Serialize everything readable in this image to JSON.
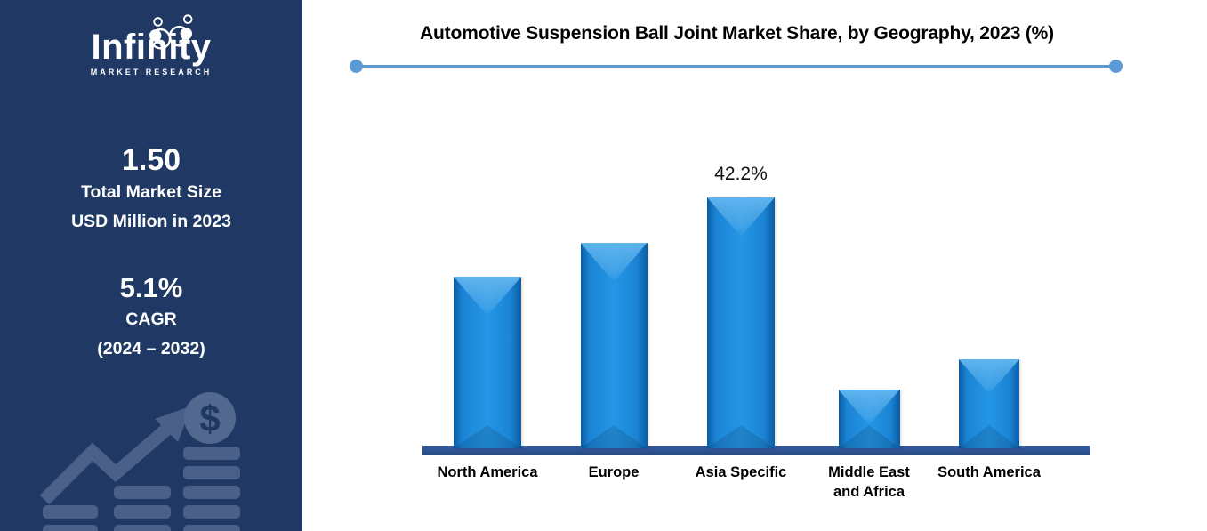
{
  "sidebar": {
    "logo": {
      "title": "Infinity",
      "subtitle": "MARKET RESEARCH"
    },
    "market_size": {
      "value": "1.50",
      "line1": "Total Market Size",
      "line2": "USD Million in 2023"
    },
    "cagr": {
      "value": "5.1%",
      "label": "CAGR",
      "period": "(2024 – 2032)"
    },
    "icons": {
      "dollar_coin": "$"
    },
    "colors": {
      "background": "#1F3864",
      "text": "#FFFFFF",
      "graphic": "#4A6088"
    }
  },
  "chart_data": {
    "type": "bar",
    "title": "Automotive Suspension Ball Joint Market Share, by Geography, 2023 (%)",
    "categories": [
      "North America",
      "Europe",
      "Asia Specific",
      "Middle East and Africa",
      "South America"
    ],
    "categories_display": [
      "North America",
      "Europe",
      "Asia Specific",
      "Middle East\nand Africa",
      "South America"
    ],
    "values": [
      28.9,
      34.6,
      42.2,
      9.9,
      15.0
    ],
    "data_labels": [
      "",
      "",
      "42.2%",
      "",
      ""
    ],
    "xlabel": "",
    "ylabel": "",
    "ylim": [
      0,
      45
    ],
    "grid": false,
    "legend": "none",
    "colors": {
      "bar": "#1B84D4",
      "bar_mid": "#2496E6",
      "bar_edge": "#0A5CA3",
      "bar_highlight": "#5FB5EF",
      "baseline": "#2E5394",
      "title_rule": "#5B9BD5"
    }
  }
}
